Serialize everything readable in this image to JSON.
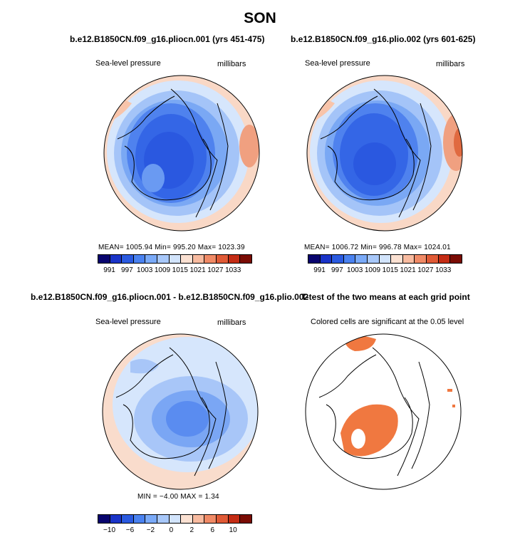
{
  "figure": {
    "title": "SON"
  },
  "panels": [
    {
      "title": "b.e12.B1850CN.f09_g16.pliocn.001 (yrs 451-475)",
      "left_label": "Sea-level pressure",
      "right_label": "millibars",
      "stats": "MEAN= 1005.94   Min= 995.20   Max= 1023.39",
      "colorbar": {
        "colors": [
          "#08046e",
          "#1a34c8",
          "#2a5ae0",
          "#4a82f0",
          "#7aaaf8",
          "#a8c8fa",
          "#d2e4fc",
          "#fbe1d2",
          "#f8bba0",
          "#f08a66",
          "#e05a36",
          "#c42c14",
          "#7a0c04"
        ],
        "ticks": [
          "991",
          "997",
          "1003",
          "1009",
          "1015",
          "1021",
          "1027",
          "1033"
        ]
      }
    },
    {
      "title": "b.e12.B1850CN.f09_g16.plio.002 (yrs 601-625)",
      "left_label": "Sea-level pressure",
      "right_label": "millibars",
      "stats": "MEAN= 1006.72   Min= 996.78   Max= 1024.01",
      "colorbar": {
        "colors": [
          "#08046e",
          "#1a34c8",
          "#2a5ae0",
          "#4a82f0",
          "#7aaaf8",
          "#a8c8fa",
          "#d2e4fc",
          "#fbe1d2",
          "#f8bba0",
          "#f08a66",
          "#e05a36",
          "#c42c14",
          "#7a0c04"
        ],
        "ticks": [
          "991",
          "997",
          "1003",
          "1009",
          "1015",
          "1021",
          "1027",
          "1033"
        ]
      }
    },
    {
      "title": "b.e12.B1850CN.f09_g16.pliocn.001 - b.e12.B1850CN.f09_g16.plio.002",
      "left_label": "Sea-level pressure",
      "right_label": "millibars",
      "stats": "MIN =   −4.00  MAX =    1.34",
      "colorbar": {
        "colors": [
          "#08046e",
          "#1a34c8",
          "#2a5ae0",
          "#4a82f0",
          "#7aaaf8",
          "#a8c8fa",
          "#d2e4fc",
          "#fbe1d2",
          "#f8bba0",
          "#f08a66",
          "#e05a36",
          "#c42c14",
          "#7a0c04"
        ],
        "ticks": [
          "−10",
          "−6",
          "−2",
          "0",
          "2",
          "6",
          "10"
        ]
      }
    },
    {
      "title": "T-test of the two means at each grid point",
      "left_label": "Colored cells are significant at the 0.05 level"
    }
  ],
  "colors": {
    "deep_blue": "#1f4fe0",
    "mid_blue": "#5a8cf0",
    "light_blue": "#c8dcfa",
    "pale_red": "#f8d2bc",
    "significant": "#f07840"
  }
}
